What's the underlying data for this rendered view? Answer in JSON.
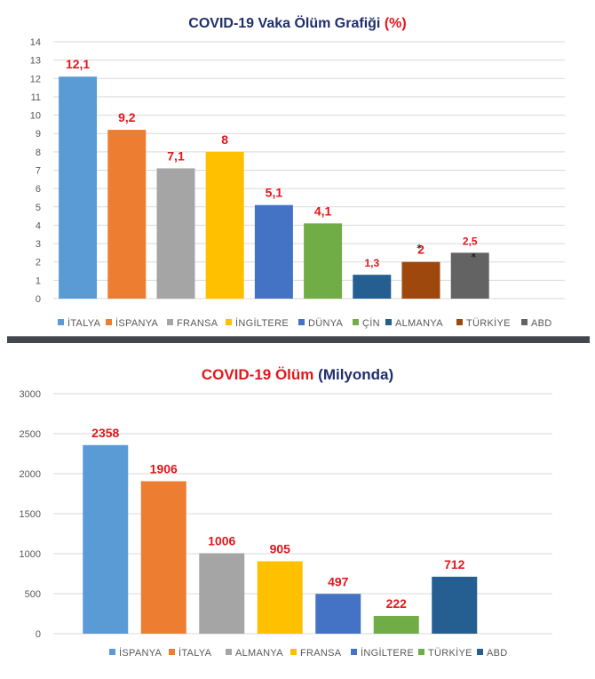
{
  "chart_data": [
    {
      "type": "bar",
      "title_main": "COVID-19 Vaka Ölüm Grafiği",
      "title_suffix": "(%)",
      "categories": [
        "İTALYA",
        "İSPANYA",
        "FRANSA",
        "İNGİLTERE",
        "DÜNYA",
        "ÇİN",
        "ALMANYA",
        "TÜRKİYE",
        "ABD"
      ],
      "values": [
        12.1,
        9.2,
        7.1,
        8,
        5.1,
        4.1,
        1.3,
        2,
        2.5
      ],
      "labels": [
        "12,1",
        "9,2",
        "7,1",
        "8",
        "5,1",
        "4,1",
        "1,3",
        "2",
        "2,5"
      ],
      "colors": [
        "#5b9bd5",
        "#ed7d31",
        "#a5a5a5",
        "#ffc000",
        "#4472c4",
        "#70ad47",
        "#255e91",
        "#9e480e",
        "#636363"
      ],
      "yticks": [
        "0",
        "1",
        "2",
        "3",
        "4",
        "5",
        "6",
        "7",
        "8",
        "9",
        "10",
        "11",
        "12",
        "13",
        "14"
      ],
      "ylim": [
        0,
        14
      ],
      "xlabel": "",
      "ylabel": "",
      "grid": true,
      "legend": "bottom",
      "annotation": "*",
      "annotated_categories": [
        "TÜRKİYE",
        "ABD"
      ]
    },
    {
      "type": "bar",
      "title_main": "COVID-19 Ölüm",
      "title_suffix": "(Milyonda)",
      "categories": [
        "İSPANYA",
        "İTALYA",
        "ALMANYA",
        "FRANSA",
        "İNGİLTERE",
        "TÜRKİYE",
        "ABD"
      ],
      "values": [
        2358,
        1906,
        1006,
        905,
        497,
        222,
        712
      ],
      "labels": [
        "2358",
        "1906",
        "1006",
        "905",
        "497",
        "222",
        "712"
      ],
      "colors": [
        "#5b9bd5",
        "#ed7d31",
        "#a5a5a5",
        "#ffc000",
        "#4472c4",
        "#70ad47",
        "#255e91"
      ],
      "yticks": [
        "0",
        "500",
        "1000",
        "1500",
        "2000",
        "2500",
        "3000"
      ],
      "ylim": [
        0,
        3000
      ],
      "xlabel": "",
      "ylabel": "",
      "grid": true,
      "legend": "bottom"
    }
  ]
}
